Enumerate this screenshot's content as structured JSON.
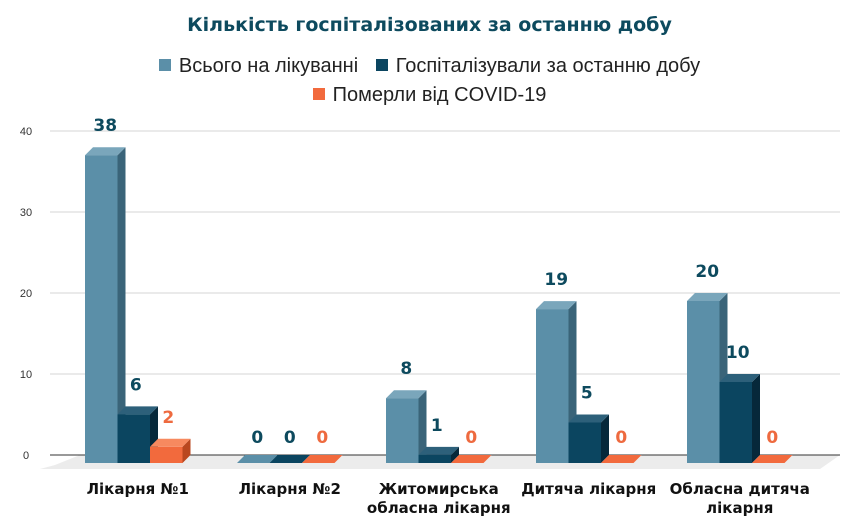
{
  "chart_data": {
    "type": "bar",
    "title": "Кількість госпіталізованих за останню добу",
    "categories": [
      "Лікарня №1",
      "Лікарня №2",
      "Житомирська обласна лікарня",
      "Дитяча лікарня",
      "Обласна дитяча лікарня"
    ],
    "category_lines": [
      [
        "Лікарня №1"
      ],
      [
        "Лікарня №2"
      ],
      [
        "Житомирська",
        "обласна лікарня"
      ],
      [
        "Дитяча лікарня"
      ],
      [
        "Обласна дитяча",
        "лікарня"
      ]
    ],
    "series": [
      {
        "name": "Всього на лікуванні",
        "values": [
          38,
          0,
          8,
          19,
          20
        ],
        "color": "#5b8fa8",
        "side": "#3a6479",
        "top": "#7aa6bb",
        "label_color": "#0d4a5e"
      },
      {
        "name": "Госпіталізували за останню добу",
        "values": [
          6,
          0,
          1,
          5,
          10
        ],
        "color": "#0b4560",
        "side": "#06283a",
        "top": "#2d607a",
        "label_color": "#0d4a5e"
      },
      {
        "name": "Померли від COVID-19",
        "values": [
          2,
          0,
          0,
          0,
          0
        ],
        "color": "#f26a3d",
        "side": "#b9471f",
        "top": "#f7895f",
        "label_color": "#ee6a3f"
      }
    ],
    "yticks": [
      0,
      10,
      20,
      30,
      40
    ],
    "ylim": [
      0,
      40
    ],
    "xlabel": "",
    "ylabel": "",
    "grid": true,
    "legend_position": "top"
  }
}
